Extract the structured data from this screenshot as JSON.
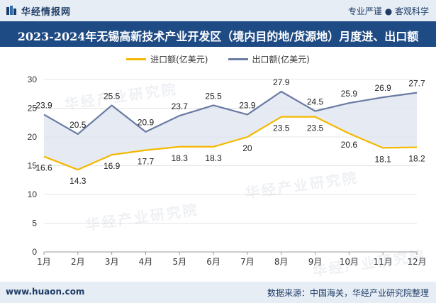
{
  "header": {
    "brand_name": "华经情报网",
    "slogan": "专业严谨 ● 客观科学"
  },
  "title": "2023-2024年无锡高新技术产业开发区（境内目的地/货源地）月度进、出口额",
  "watermark": "华经产业研究院",
  "footer": {
    "url": "www.huaon.com",
    "source": "数据来源：中国海关，华经产业研究院整理"
  },
  "colors": {
    "import_line": "#f5b800",
    "export_line": "#6a7ba3",
    "band_fill": "#dde3ee",
    "header_bar": "#1f4b85",
    "grid": "#e4e4e4"
  },
  "chart_data": {
    "type": "line",
    "title": "2023-2024年无锡高新技术产业开发区（境内目的地/货源地）月度进、出口额",
    "categories": [
      "1月",
      "2月",
      "3月",
      "4月",
      "5月",
      "6月",
      "7月",
      "8月",
      "9月",
      "10月",
      "11月",
      "12月"
    ],
    "series": [
      {
        "name": "进口额(亿美元)",
        "color": "#f5b800",
        "values": [
          16.6,
          14.3,
          16.9,
          17.7,
          18.3,
          18.3,
          20,
          23.5,
          23.5,
          20.6,
          18.1,
          18.2
        ]
      },
      {
        "name": "出口额(亿美元)",
        "color": "#6a7ba3",
        "values": [
          23.9,
          20.5,
          25.5,
          20.9,
          23.7,
          25.5,
          23.9,
          27.9,
          24.5,
          25.9,
          26.9,
          27.7
        ]
      }
    ],
    "ylim": [
      0,
      30
    ],
    "yticks": [
      0,
      5,
      10,
      15,
      20,
      25,
      30
    ],
    "xlabel": "",
    "ylabel": "",
    "grid": true,
    "legend": "top-center"
  }
}
